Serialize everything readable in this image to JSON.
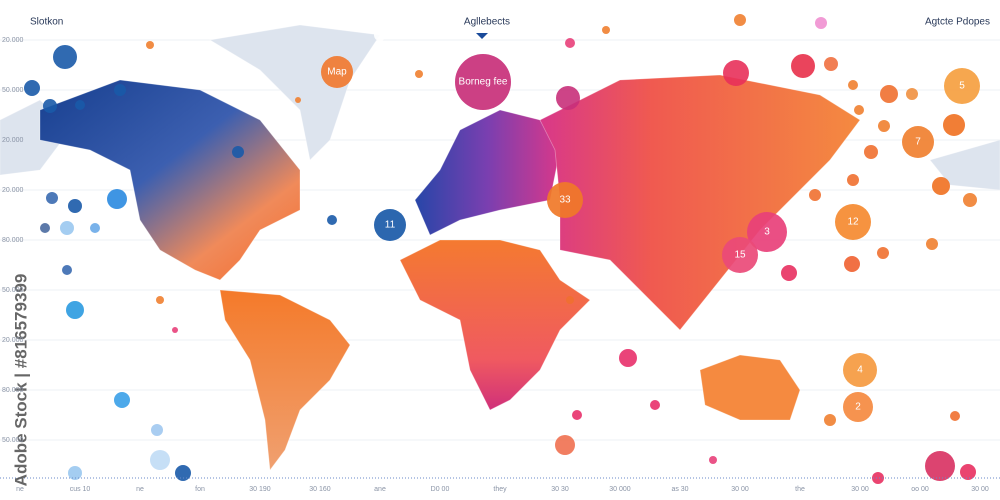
{
  "header": {
    "left_title": "Slotkon",
    "center_title": "Agllebects",
    "right_title": "Agtcte Pdopes"
  },
  "bubble_labels": [
    "Map",
    "Borneg fee",
    "33",
    "11",
    "12",
    "3",
    "15",
    "7",
    "5",
    "4",
    "2"
  ],
  "left_labels": [
    "20.000",
    "50.000",
    "20.000",
    "20.000",
    "80.000",
    "50.000",
    "20.000",
    "80.000",
    "50.000"
  ],
  "bottom_labels": [
    "ne",
    "cus 10",
    "ne",
    "fon",
    "30 190",
    "30 160",
    "ane",
    "D0 00",
    "they",
    "30 30",
    "30 000",
    "as 30",
    "30 00",
    "the",
    "30 00",
    "oo 00",
    "30 00"
  ],
  "watermark": "Adobe Stock | #816579399"
}
